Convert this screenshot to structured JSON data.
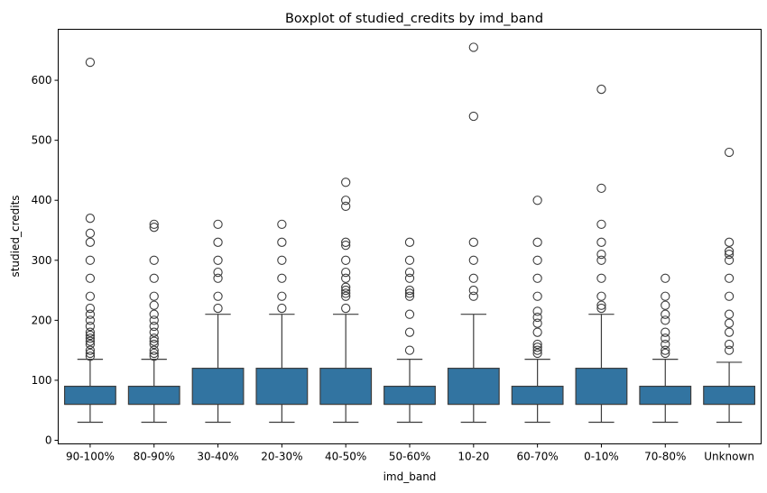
{
  "chart_data": {
    "type": "boxplot",
    "title": "Boxplot of studied_credits by imd_band",
    "xlabel": "imd_band",
    "ylabel": "studied_credits",
    "ylim": [
      0,
      685
    ],
    "yticks": [
      0,
      100,
      200,
      300,
      400,
      500,
      600
    ],
    "grid": false,
    "box_color": "#3274a1",
    "line_color": "#3d3d3d",
    "categories": [
      "90-100%",
      "80-90%",
      "30-40%",
      "20-30%",
      "40-50%",
      "50-60%",
      "10-20",
      "60-70%",
      "0-10%",
      "70-80%",
      "Unknown"
    ],
    "boxes": [
      {
        "min": 30,
        "q1": 60,
        "median": 60,
        "q3": 90,
        "max": 135,
        "outliers": [
          140,
          145,
          150,
          160,
          165,
          170,
          175,
          180,
          190,
          200,
          210,
          220,
          240,
          270,
          300,
          330,
          345,
          370,
          630
        ]
      },
      {
        "min": 30,
        "q1": 60,
        "median": 60,
        "q3": 90,
        "max": 135,
        "outliers": [
          140,
          145,
          150,
          160,
          165,
          170,
          180,
          190,
          200,
          210,
          225,
          240,
          270,
          300,
          355,
          360
        ]
      },
      {
        "min": 30,
        "q1": 60,
        "median": 60,
        "q3": 120,
        "max": 210,
        "outliers": [
          220,
          240,
          270,
          280,
          300,
          330,
          360
        ]
      },
      {
        "min": 30,
        "q1": 60,
        "median": 60,
        "q3": 120,
        "max": 210,
        "outliers": [
          220,
          240,
          270,
          300,
          330,
          360
        ]
      },
      {
        "min": 30,
        "q1": 60,
        "median": 60,
        "q3": 120,
        "max": 210,
        "outliers": [
          220,
          240,
          245,
          250,
          255,
          270,
          280,
          300,
          325,
          330,
          390,
          400,
          430
        ]
      },
      {
        "min": 30,
        "q1": 60,
        "median": 60,
        "q3": 90,
        "max": 135,
        "outliers": [
          150,
          180,
          210,
          240,
          245,
          250,
          270,
          280,
          300,
          330
        ]
      },
      {
        "min": 30,
        "q1": 60,
        "median": 60,
        "q3": 120,
        "max": 210,
        "outliers": [
          240,
          250,
          270,
          300,
          330,
          540,
          655
        ]
      },
      {
        "min": 30,
        "q1": 60,
        "median": 60,
        "q3": 90,
        "max": 135,
        "outliers": [
          145,
          150,
          155,
          160,
          180,
          195,
          205,
          215,
          240,
          270,
          300,
          330,
          400
        ]
      },
      {
        "min": 30,
        "q1": 60,
        "median": 60,
        "q3": 120,
        "max": 210,
        "outliers": [
          220,
          225,
          240,
          270,
          300,
          310,
          330,
          360,
          420,
          585
        ]
      },
      {
        "min": 30,
        "q1": 60,
        "median": 60,
        "q3": 90,
        "max": 135,
        "outliers": [
          145,
          150,
          160,
          170,
          180,
          200,
          210,
          225,
          240,
          270
        ]
      },
      {
        "min": 30,
        "q1": 60,
        "median": 60,
        "q3": 90,
        "max": 130,
        "outliers": [
          150,
          160,
          180,
          195,
          210,
          240,
          270,
          300,
          310,
          315,
          330,
          480
        ]
      }
    ]
  }
}
